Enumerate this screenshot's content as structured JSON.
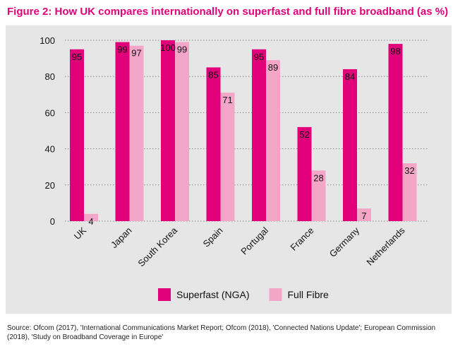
{
  "figure": {
    "title": "Figure 2:  How UK compares internationally on superfast and full fibre broadband (as %)",
    "source": "Source: Ofcom (2017), 'International Communications Market Report; Ofcom (2018), 'Connected Nations Update'; European Commission (2018), 'Study on Broadband Coverage in Europe'"
  },
  "chart_data": {
    "type": "bar",
    "title": "Figure 2:  How UK compares internationally on superfast and full fibre broadband (as %)",
    "categories": [
      "UK",
      "Japan",
      "South Korea",
      "Spain",
      "Portugal",
      "France",
      "Germany",
      "Netherlands"
    ],
    "series": [
      {
        "name": "Superfast (NGA)",
        "color": "#e2007a",
        "values": [
          95,
          99,
          100,
          85,
          95,
          52,
          84,
          98
        ]
      },
      {
        "name": "Full Fibre",
        "color": "#f4a6c9",
        "values": [
          4,
          97,
          99,
          71,
          89,
          28,
          7,
          32
        ]
      }
    ],
    "ylim": [
      0,
      100
    ],
    "yticks": [
      0,
      20,
      40,
      60,
      80,
      100
    ],
    "grid": true,
    "legend_position": "bottom-center",
    "xlabel": "",
    "ylabel": ""
  }
}
